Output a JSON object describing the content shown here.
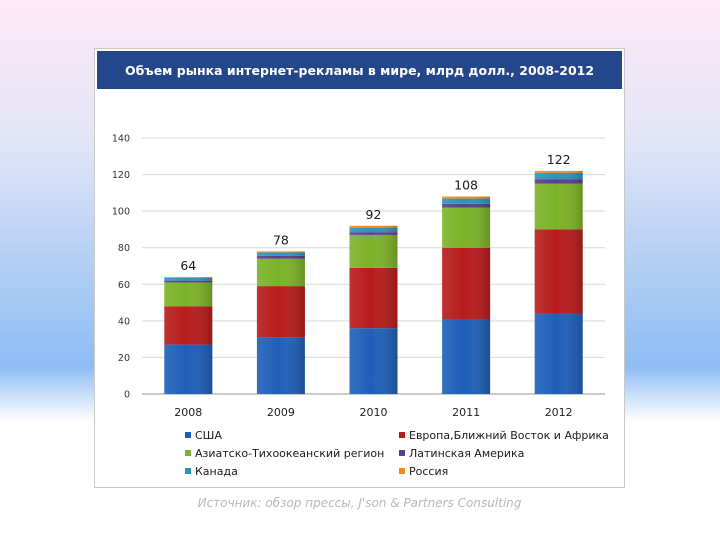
{
  "chart_data": {
    "type": "bar",
    "stacked": true,
    "title": "Объем рынка интернет-рекламы в мире, млрд долл., 2008-2012",
    "xlabel": "",
    "ylabel": "",
    "ylim": [
      0,
      140
    ],
    "yticks": [
      0,
      20,
      40,
      60,
      80,
      100,
      120,
      140
    ],
    "grid": true,
    "legend_position": "bottom",
    "categories": [
      "2008",
      "2009",
      "2010",
      "2011",
      "2012"
    ],
    "totals": [
      64,
      78,
      92,
      108,
      122
    ],
    "series": [
      {
        "name": "США",
        "color": "#1f5fb8",
        "values": [
          27,
          31,
          36,
          41,
          44
        ]
      },
      {
        "name": "Европа,Ближний Восток и Африка",
        "color": "#b71c1c",
        "values": [
          21,
          28,
          33,
          39,
          46
        ]
      },
      {
        "name": "Азиатско-Тихоокеанский регион",
        "color": "#7cb228",
        "values": [
          13,
          15,
          18,
          22,
          25
        ]
      },
      {
        "name": "Латинская Америка",
        "color": "#5a3f8f",
        "values": [
          1,
          1.5,
          1.5,
          2,
          2.5
        ]
      },
      {
        "name": "Канада",
        "color": "#2e94b8",
        "values": [
          1.5,
          2,
          2.5,
          3,
          3.5
        ]
      },
      {
        "name": "Россия",
        "color": "#f28a1e",
        "values": [
          0.5,
          0.5,
          1,
          1,
          1
        ]
      }
    ]
  },
  "source": "Источник: обзор прессы, J'son & Partners Consulting"
}
